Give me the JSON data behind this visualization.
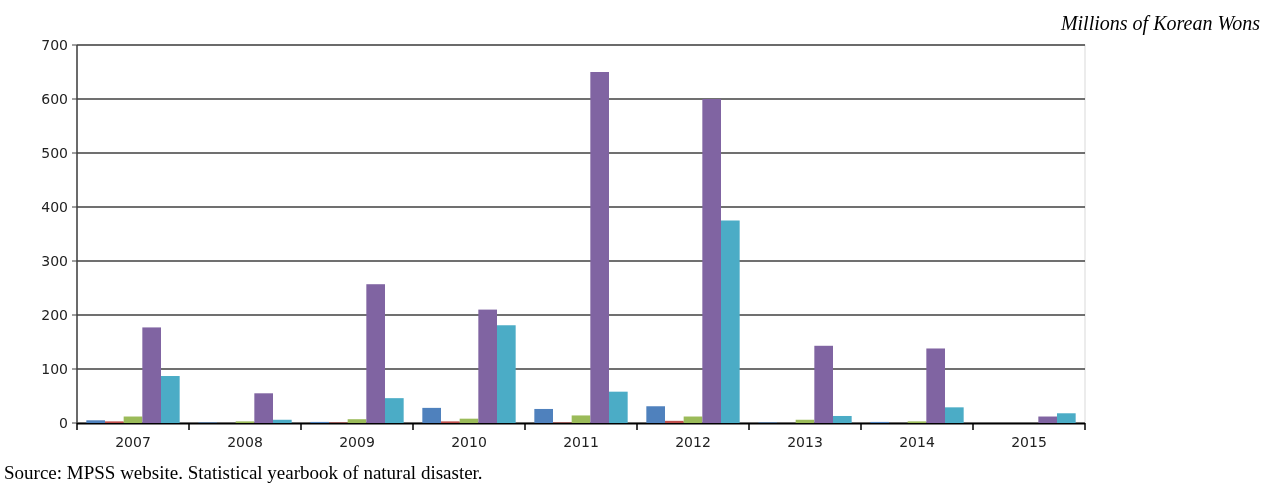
{
  "chart_data": {
    "type": "bar",
    "categories": [
      "2007",
      "2008",
      "2009",
      "2010",
      "2011",
      "2012",
      "2013",
      "2014",
      "2015"
    ],
    "series": [
      {
        "color": "#4f81bd",
        "values": [
          5,
          1,
          2,
          28,
          26,
          31,
          1,
          2,
          0
        ]
      },
      {
        "color": "#c0504d",
        "values": [
          3,
          0,
          1,
          3,
          1,
          4,
          0,
          0,
          0
        ]
      },
      {
        "color": "#9bbb59",
        "values": [
          12,
          3,
          7,
          8,
          14,
          12,
          6,
          3,
          0
        ]
      },
      {
        "color": "#8064a2",
        "values": [
          177,
          55,
          257,
          210,
          650,
          600,
          143,
          138,
          12
        ]
      },
      {
        "color": "#4bacc6",
        "values": [
          87,
          6,
          46,
          181,
          58,
          375,
          13,
          29,
          18
        ]
      }
    ],
    "ylim": [
      0,
      700
    ],
    "yticks": [
      0,
      100,
      200,
      300,
      400,
      500,
      600,
      700
    ],
    "grid": "y",
    "annotations": [
      "Millions of Korean Wons",
      "Source: MPSS website. Statistical yearbook of natural disaster."
    ]
  }
}
